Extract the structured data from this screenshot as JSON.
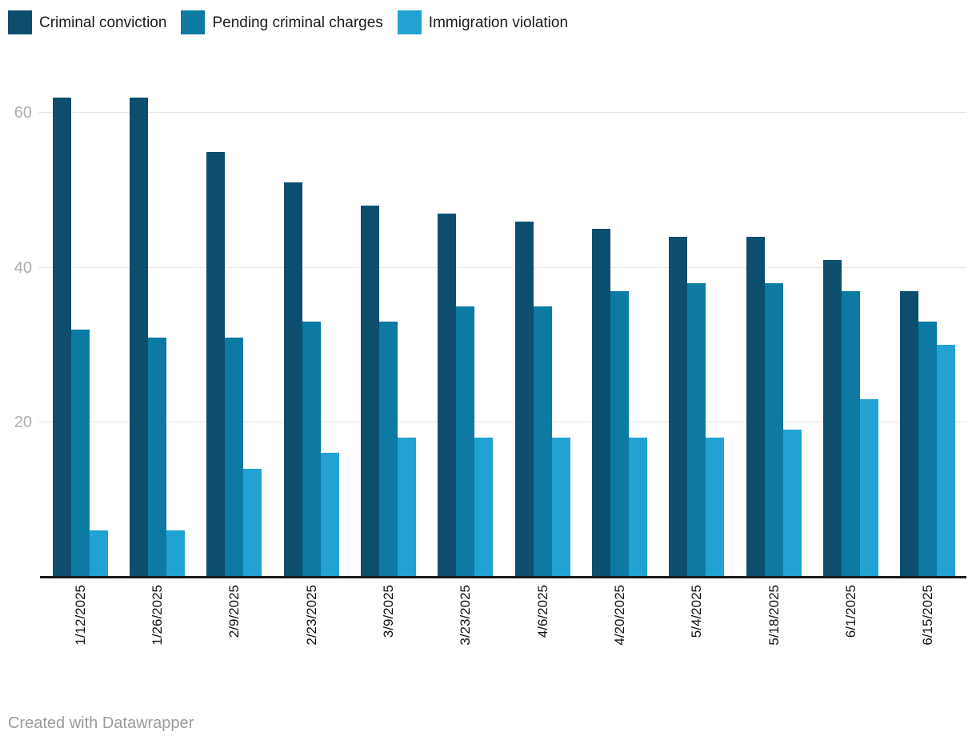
{
  "legend": {
    "items": [
      {
        "label": "Criminal conviction",
        "color": "#0d4e6e"
      },
      {
        "label": "Pending criminal charges",
        "color": "#0c7aa3"
      },
      {
        "label": "Immigration violation",
        "color": "#21a2d3"
      }
    ]
  },
  "chart_data": {
    "type": "bar",
    "categories": [
      "1/12/2025",
      "1/26/2025",
      "2/9/2025",
      "2/23/2025",
      "3/9/2025",
      "3/23/2025",
      "4/6/2025",
      "4/20/2025",
      "5/4/2025",
      "5/18/2025",
      "6/1/2025",
      "6/15/2025"
    ],
    "series": [
      {
        "name": "Criminal conviction",
        "color": "#0d4e6e",
        "values": [
          62,
          62,
          55,
          51,
          48,
          47,
          46,
          45,
          44,
          44,
          41,
          37
        ]
      },
      {
        "name": "Pending criminal charges",
        "color": "#0c7aa3",
        "values": [
          32,
          31,
          31,
          33,
          33,
          35,
          35,
          37,
          38,
          38,
          37,
          33
        ]
      },
      {
        "name": "Immigration violation",
        "color": "#21a2d3",
        "values": [
          6,
          6,
          14,
          16,
          18,
          18,
          18,
          18,
          18,
          19,
          23,
          30
        ]
      }
    ],
    "title": "",
    "xlabel": "",
    "ylabel": "",
    "ylim": [
      0,
      62
    ],
    "yticks": [
      20,
      40,
      60
    ],
    "grid": true,
    "legend_position": "top-left",
    "bar_orientation": "vertical",
    "x_tick_rotation_deg": 90
  },
  "footer": {
    "credit": "Created with Datawrapper"
  },
  "style_colors": {
    "axis_line": "#1a1a1a",
    "gridline": "#e6e6e6",
    "y_tick_label": "#aeaeae",
    "x_tick_label": "#111111",
    "footer_text": "#9b9b9b",
    "background": "#ffffff"
  }
}
